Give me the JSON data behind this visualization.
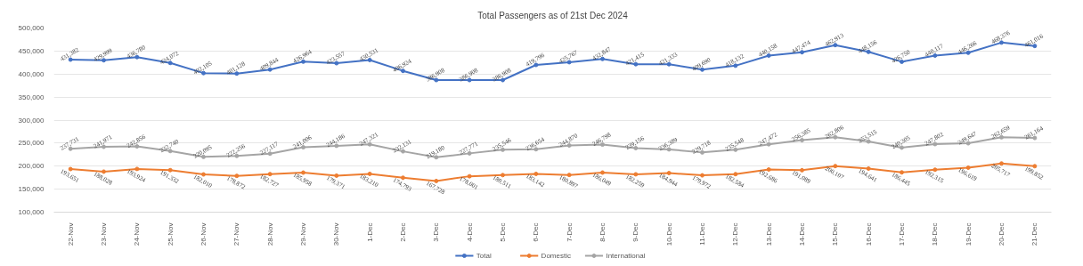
{
  "chart_data": {
    "type": "line",
    "title": "Total Passengers as of 21st Dec 2024",
    "categories": [
      "22-Nov",
      "23-Nov",
      "24-Nov",
      "25-Nov",
      "26-Nov",
      "27-Nov",
      "28-Nov",
      "29-Nov",
      "30-Nov",
      "1-Dec",
      "2-Dec",
      "3-Dec",
      "4-Dec",
      "5-Dec",
      "6-Dec",
      "7-Dec",
      "8-Dec",
      "9-Dec",
      "10-Dec",
      "11-Dec",
      "12-Dec",
      "13-Dec",
      "14-Dec",
      "15-Dec",
      "16-Dec",
      "17-Dec",
      "18-Dec",
      "19-Dec",
      "20-Dec",
      "21-Dec"
    ],
    "series": [
      {
        "name": "Total",
        "color": "#4472c4",
        "values": [
          431382,
          429999,
          436780,
          424072,
          402105,
          401128,
          409844,
          426964,
          423557,
          430531,
          406924,
          386908,
          386908,
          386908,
          419796,
          425767,
          432847,
          421415,
          421333,
          409690,
          418132,
          440158,
          447474,
          462913,
          448156,
          426750,
          440117,
          446266,
          468376,
          461016
        ],
        "value_labels": [
          "431,382",
          "429,999",
          "436,780",
          "424,072",
          "402,105",
          "401,128",
          "409,844",
          "426,964",
          "423,557",
          "430,531",
          "406,924",
          "386,908",
          "386,908",
          "386,908",
          "419,796",
          "425,767",
          "432,847",
          "421,415",
          "421,333",
          "409,690",
          "418,132",
          "440,158",
          "447,474",
          "462,913",
          "448,156",
          "426,750",
          "440,117",
          "446,266",
          "468,376",
          "461,016"
        ]
      },
      {
        "name": "Domestic",
        "color": "#ed7d31",
        "values": [
          193651,
          188028,
          193924,
          191332,
          182010,
          178872,
          182727,
          185958,
          179371,
          183210,
          174793,
          167728,
          178001,
          180511,
          183142,
          180897,
          186049,
          182259,
          184944,
          179972,
          182584,
          192686,
          191089,
          200107,
          194641,
          186445,
          192315,
          196619,
          205717,
          199852
        ],
        "value_labels": [
          "193,651",
          "188,028",
          "193,924",
          "191,332",
          "182,010",
          "178,872",
          "182,727",
          "185,958",
          "179,371",
          "183,210",
          "174,793",
          "167,728",
          "178,001",
          "180,511",
          "183,142",
          "180,897",
          "186,049",
          "182,259",
          "184,944",
          "179,972",
          "182,584",
          "192,686",
          "191,089",
          "200,107",
          "194,641",
          "186,445",
          "192,315",
          "196,619",
          "205,717",
          "199,852"
        ]
      },
      {
        "name": "International",
        "color": "#a5a5a5",
        "values": [
          237731,
          241971,
          242856,
          232740,
          220095,
          222256,
          227117,
          241006,
          244186,
          247321,
          232131,
          219180,
          227771,
          235546,
          236654,
          244870,
          246798,
          239156,
          236389,
          229718,
          235548,
          247472,
          256385,
          262806,
          253515,
          240305,
          247802,
          249647,
          262659,
          261164
        ],
        "value_labels": [
          "237,731",
          "241,971",
          "242,856",
          "232,740",
          "220,095",
          "222,256",
          "227,117",
          "241,006",
          "244,186",
          "247,321",
          "232,131",
          "219,180",
          "227,771",
          "235,546",
          "236,654",
          "244,870",
          "246,798",
          "239,156",
          "236,389",
          "229,718",
          "235,548",
          "247,472",
          "256,385",
          "262,806",
          "253,515",
          "240,305",
          "247,802",
          "249,647",
          "262,659",
          "261,164"
        ]
      }
    ],
    "ylim": [
      100000,
      500000
    ],
    "yticks": [
      {
        "value": 100000,
        "label": "100,000"
      },
      {
        "value": 150000,
        "label": "150,000"
      },
      {
        "value": 200000,
        "label": "200,000"
      },
      {
        "value": 250000,
        "label": "250,000"
      },
      {
        "value": 300000,
        "label": "300,000"
      },
      {
        "value": 350000,
        "label": "350,000"
      },
      {
        "value": 400000,
        "label": "400,000"
      },
      {
        "value": 450000,
        "label": "450,000"
      },
      {
        "value": 500000,
        "label": "500,000"
      }
    ],
    "grid": "y",
    "legend": "bottom",
    "marker": "circle",
    "line_style": "solid"
  }
}
